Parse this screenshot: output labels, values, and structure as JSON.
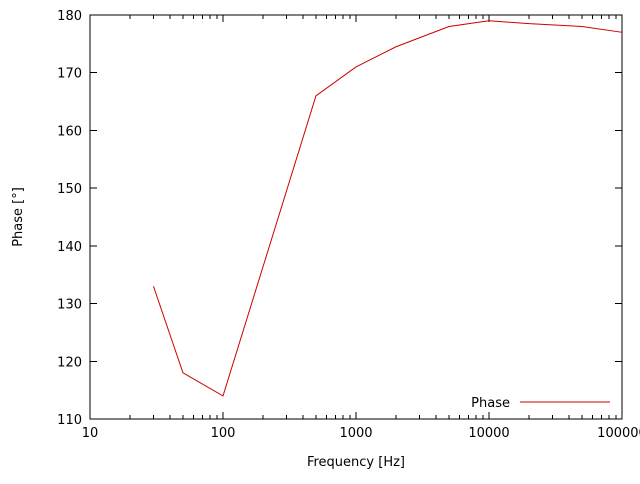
{
  "chart_data": {
    "type": "line",
    "title": "",
    "xlabel": "Frequency [Hz]",
    "ylabel": "Phase [°]",
    "x_scale": "log",
    "xlim": [
      10,
      100000
    ],
    "ylim": [
      110,
      180
    ],
    "x_ticks": [
      10,
      100,
      1000,
      10000,
      100000
    ],
    "x_tick_labels": [
      "10",
      "100",
      "1000",
      "10000",
      "100000"
    ],
    "y_ticks": [
      110,
      120,
      130,
      140,
      150,
      160,
      170,
      180
    ],
    "grid": false,
    "legend_position": "bottom-right",
    "series": [
      {
        "name": "Phase",
        "color": "#cc0000",
        "x": [
          30,
          50,
          100,
          500,
          1000,
          2000,
          5000,
          10000,
          20000,
          50000,
          100000
        ],
        "y": [
          133,
          118,
          114,
          166,
          171,
          174.5,
          178,
          179,
          178.5,
          178,
          177
        ]
      }
    ]
  }
}
